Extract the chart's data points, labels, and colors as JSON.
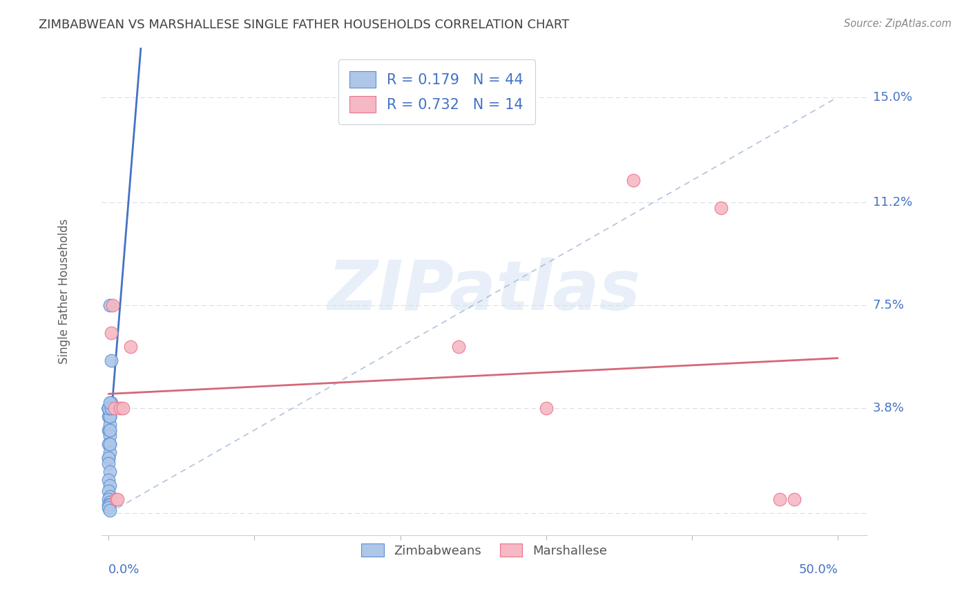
{
  "title": "ZIMBABWEAN VS MARSHALLESE SINGLE FATHER HOUSEHOLDS CORRELATION CHART",
  "source": "Source: ZipAtlas.com",
  "ylabel": "Single Father Households",
  "ytick_labels": [
    "15.0%",
    "11.2%",
    "7.5%",
    "3.8%"
  ],
  "ytick_values": [
    0.15,
    0.112,
    0.075,
    0.038
  ],
  "xlim": [
    -0.005,
    0.52
  ],
  "ylim": [
    -0.008,
    0.168
  ],
  "watermark_zip": "ZIP",
  "watermark_atlas": "atlas",
  "legend_blue_R": "R = 0.179",
  "legend_blue_N": "N = 44",
  "legend_pink_R": "R = 0.732",
  "legend_pink_N": "N = 14",
  "blue_fill": "#aec6e8",
  "pink_fill": "#f5b8c4",
  "blue_edge": "#5b8fd4",
  "pink_edge": "#e8748a",
  "line_blue": "#4472c4",
  "line_pink": "#d46878",
  "diagonal_color": "#a8bcd8",
  "grid_color": "#d8dfe8",
  "title_color": "#404040",
  "axis_blue": "#4472c4",
  "source_color": "#888888",
  "ylabel_color": "#606060",
  "zimbabwe_x": [
    0.0,
    0.001,
    0.0,
    0.001,
    0.0,
    0.001,
    0.002,
    0.001,
    0.0,
    0.001,
    0.001,
    0.0,
    0.001,
    0.0,
    0.001,
    0.0,
    0.001,
    0.002,
    0.001,
    0.0,
    0.0,
    0.001,
    0.0,
    0.001,
    0.001,
    0.0,
    0.001,
    0.0,
    0.001,
    0.0,
    0.001,
    0.0,
    0.001,
    0.0,
    0.001,
    0.0,
    0.001,
    0.0,
    0.001,
    0.002,
    0.001,
    0.0,
    0.002,
    0.001
  ],
  "zimbabwe_y": [
    0.038,
    0.038,
    0.03,
    0.025,
    0.02,
    0.038,
    0.04,
    0.035,
    0.038,
    0.03,
    0.038,
    0.035,
    0.032,
    0.038,
    0.028,
    0.025,
    0.022,
    0.055,
    0.075,
    0.038,
    0.038,
    0.03,
    0.038,
    0.035,
    0.038,
    0.02,
    0.025,
    0.018,
    0.015,
    0.012,
    0.01,
    0.008,
    0.006,
    0.005,
    0.004,
    0.003,
    0.003,
    0.002,
    0.001,
    0.038,
    0.035,
    0.038,
    0.038,
    0.04
  ],
  "marshall_x": [
    0.002,
    0.003,
    0.004,
    0.005,
    0.006,
    0.008,
    0.01,
    0.015,
    0.24,
    0.3,
    0.36,
    0.42,
    0.46,
    0.47
  ],
  "marshall_y": [
    0.065,
    0.075,
    0.038,
    0.005,
    0.005,
    0.038,
    0.038,
    0.06,
    0.06,
    0.038,
    0.12,
    0.11,
    0.005,
    0.005
  ]
}
